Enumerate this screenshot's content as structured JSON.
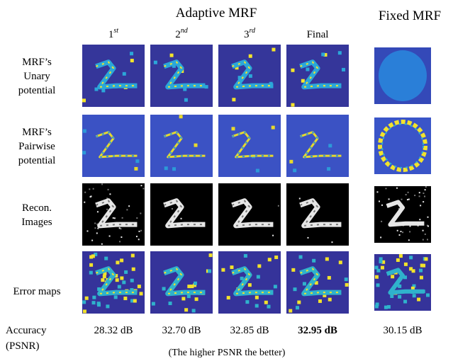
{
  "header": {
    "group_title": "Adaptive MRF",
    "fixed_title": "Fixed MRF"
  },
  "columns": [
    {
      "base": "1",
      "sup": "st"
    },
    {
      "base": "2",
      "sup": "nd"
    },
    {
      "base": "3",
      "sup": "rd"
    },
    {
      "base": "Final"
    }
  ],
  "rows": [
    [
      "MRF’s",
      "Unary",
      "potential"
    ],
    [
      "MRF’s",
      "Pairwise",
      "potential"
    ],
    [
      "Recon.",
      "Images"
    ],
    [
      "Error maps"
    ]
  ],
  "accuracy": {
    "label": [
      "Accuracy",
      "(PSNR)"
    ],
    "values": [
      "28.32 dB",
      "32.70 dB",
      "32.85 dB",
      "32.95 dB",
      "30.15 dB"
    ]
  },
  "caption": "(The higher PSNR the better)"
}
